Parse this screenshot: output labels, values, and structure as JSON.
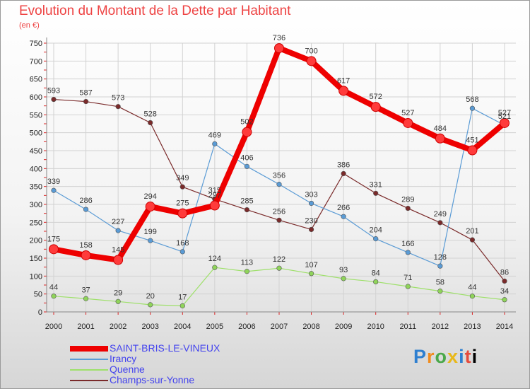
{
  "chart_data": {
    "type": "line",
    "title": "Evolution du Montant de la Dette par Habitant",
    "unit_label": "(en €)",
    "x": [
      "2000",
      "2001",
      "2002",
      "2003",
      "2004",
      "2005",
      "2006",
      "2007",
      "2008",
      "2009",
      "2010",
      "2011",
      "2012",
      "2013",
      "2014"
    ],
    "ylim": [
      0,
      750
    ],
    "yticks": [
      0,
      50,
      100,
      150,
      200,
      250,
      300,
      350,
      400,
      450,
      500,
      550,
      600,
      650,
      700,
      750
    ],
    "grid": true,
    "legend_position": "bottom-left",
    "series": [
      {
        "name": "SAINT-BRIS-LE-VINEUX",
        "color": "#ee0000",
        "marker_color": "#ff3b3b",
        "values": [
          175,
          158,
          145,
          294,
          275,
          297,
          502,
          736,
          700,
          617,
          572,
          527,
          484,
          451,
          527
        ]
      },
      {
        "name": "Irancy",
        "color": "#5a9bd5",
        "marker_color": "#5a9bd5",
        "values": [
          339,
          286,
          227,
          199,
          168,
          469,
          406,
          356,
          303,
          266,
          204,
          166,
          128,
          568,
          521
        ]
      },
      {
        "name": "Quenne",
        "color": "#9ee06a",
        "marker_color": "#8fd45a",
        "values": [
          44,
          37,
          29,
          20,
          17,
          124,
          113,
          122,
          107,
          93,
          84,
          71,
          58,
          44,
          34
        ]
      },
      {
        "name": "Champs-sur-Yonne",
        "color": "#7a2a2a",
        "marker_color": "#7a2a2a",
        "values": [
          593,
          587,
          573,
          528,
          349,
          315,
          285,
          256,
          230,
          386,
          331,
          289,
          249,
          201,
          86
        ]
      }
    ]
  },
  "logo_letters": [
    "P",
    "r",
    "o",
    "x",
    "i",
    "t",
    "i"
  ]
}
